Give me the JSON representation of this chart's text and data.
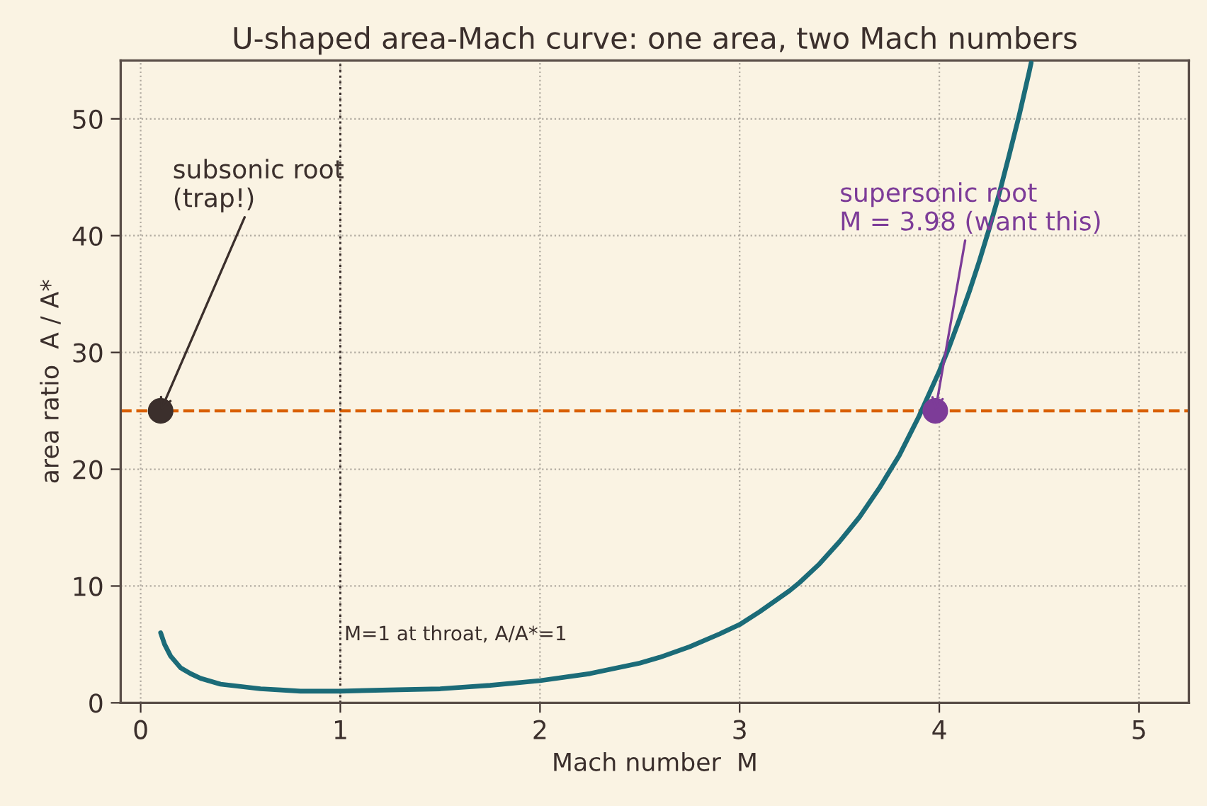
{
  "chart_data": {
    "type": "line",
    "title": "U-shaped area-Mach curve: one area, two Mach numbers",
    "xlabel": "Mach number  M",
    "ylabel": "area ratio  A / A*",
    "xlim": [
      -0.1,
      5.25
    ],
    "xticks": [
      0,
      1,
      2,
      3,
      4,
      5
    ],
    "ylim": [
      0,
      55
    ],
    "yticks": [
      0,
      10,
      20,
      30,
      40,
      50
    ],
    "grid": true,
    "series": [
      {
        "color": "#1b6b78",
        "x": [
          0.1,
          0.12,
          0.15,
          0.2,
          0.25,
          0.3,
          0.4,
          0.5,
          0.6,
          0.7,
          0.8,
          0.9,
          1,
          1.25,
          1.5,
          1.75,
          2,
          2.25,
          2.5,
          2.6,
          2.75,
          2.9,
          3,
          3.1,
          3.25,
          3.3,
          3.4,
          3.5,
          3.6,
          3.7,
          3.75,
          3.8,
          3.9,
          4,
          4.05,
          4.1,
          4.15,
          4.2,
          4.25,
          4.3,
          4.35,
          4.4,
          4.45,
          4.46
        ],
        "values": [
          6.0,
          5.0,
          4.0,
          3.0,
          2.5,
          2.1,
          1.6,
          1.4,
          1.2,
          1.1,
          1.0,
          1.0,
          1.0,
          1.1,
          1.2,
          1.5,
          1.9,
          2.5,
          3.4,
          3.9,
          4.8,
          5.9,
          6.7,
          7.8,
          9.6,
          10.3,
          11.9,
          13.8,
          15.9,
          18.4,
          19.8,
          21.2,
          24.6,
          28.4,
          30.5,
          32.8,
          35.2,
          37.8,
          40.6,
          43.6,
          46.9,
          50.3,
          54.0,
          54.8
        ]
      },
      {
        "type": "scatter",
        "marker": "circle",
        "colors": [
          "#3b2f2c",
          "#7d3c98"
        ],
        "x": [
          0.1,
          3.98
        ],
        "values": [
          25,
          25
        ]
      }
    ],
    "ref_lines": [
      {
        "axis": "y",
        "value": 25,
        "color": "#d95f02",
        "line_style": "dashed"
      },
      {
        "axis": "x",
        "value": 1,
        "color": "#3b2f2c",
        "line_style": "dotted"
      }
    ],
    "annotations": [
      {
        "text": "subsonic root\n(trap!)",
        "x": 0.1,
        "y": 25
      },
      {
        "text": "supersonic root\nM = 3.98 (want this)",
        "x": 3.98,
        "y": 25
      },
      {
        "text": "M=1 at throat, A/A*=1",
        "x": 1.02,
        "y": 5
      }
    ]
  }
}
